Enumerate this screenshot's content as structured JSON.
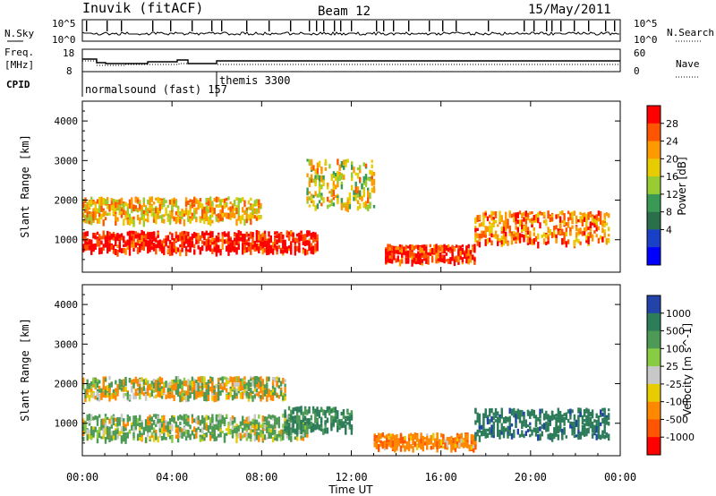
{
  "header": {
    "station": "Inuvik (fitACF)",
    "beam": "Beam 12",
    "date": "15/May/2011"
  },
  "noise_panel": {
    "left_label": "N.Sky",
    "right_label": "N.Search",
    "ticks_left": [
      "10^5",
      "10^0"
    ],
    "ticks_right": [
      "10^5",
      "10^0"
    ]
  },
  "freq_panel": {
    "left_label_1": "Freq.",
    "left_label_2": "[MHz]",
    "right_label": "Nave",
    "ticks_left": [
      "18",
      "8"
    ],
    "ticks_right": [
      "60",
      "0"
    ]
  },
  "cpid_panel": {
    "label": "CPID",
    "modes": [
      "normalsound (fast) 157",
      "themis 3300"
    ]
  },
  "chart_data": [
    {
      "type": "heatmap",
      "quantity": "Power",
      "ylabel": "Slant Range [km]",
      "xlabel": "Time UT",
      "ylim": [
        180,
        4500
      ],
      "xlim": [
        "00:00",
        "24:00"
      ],
      "colorbar_label": "Power [dB]",
      "colorbar_ticks": [
        28,
        24,
        20,
        16,
        12,
        8,
        4
      ],
      "colorbar_colors": [
        "#ff0000",
        "#ff5500",
        "#ff9900",
        "#e6cc00",
        "#99cc33",
        "#3a9a55",
        "#2a6e4a",
        "#1a40c8",
        "#0000ff"
      ],
      "features": [
        {
          "time_start": "00:00",
          "time_end": "10:30",
          "range_center": 950,
          "range_width": 500,
          "power_db": 28
        },
        {
          "time_start": "00:00",
          "time_end": "08:00",
          "range_center": 1750,
          "range_width": 600,
          "power_db": 18
        },
        {
          "time_start": "10:00",
          "time_end": "13:00",
          "range_center": 2400,
          "range_width": 1200,
          "power_db": 16
        },
        {
          "time_start": "13:30",
          "time_end": "17:30",
          "range_center": 650,
          "range_width": 400,
          "power_db": 26
        },
        {
          "time_start": "17:30",
          "time_end": "23:30",
          "range_center": 1300,
          "range_width": 800,
          "power_db": 22
        }
      ]
    },
    {
      "type": "heatmap",
      "quantity": "Velocity",
      "ylabel": "Slant Range [km]",
      "xlabel": "Time UT",
      "ylim": [
        180,
        4500
      ],
      "xlim": [
        "00:00",
        "24:00"
      ],
      "colorbar_label": "Velocity [m s^-1]",
      "colorbar_ticks": [
        1000,
        500,
        100,
        25,
        -25,
        -100,
        -500,
        -1000
      ],
      "colorbar_colors": [
        "#2244aa",
        "#2e7d5a",
        "#4c9a55",
        "#88cc44",
        "#c8c8c8",
        "#e6cc00",
        "#ff8800",
        "#ff5500",
        "#ff0000"
      ],
      "features": [
        {
          "time_start": "00:00",
          "time_end": "09:00",
          "range_center": 1900,
          "range_width": 500,
          "velocity": 0
        },
        {
          "time_start": "00:00",
          "time_end": "10:00",
          "range_center": 900,
          "range_width": 600,
          "velocity": 80
        },
        {
          "time_start": "09:00",
          "time_end": "12:00",
          "range_center": 1100,
          "range_width": 600,
          "velocity": 400
        },
        {
          "time_start": "13:00",
          "time_end": "17:30",
          "range_center": 550,
          "range_width": 350,
          "velocity": -200
        },
        {
          "time_start": "17:30",
          "time_end": "23:30",
          "range_center": 1000,
          "range_width": 700,
          "velocity": 600
        }
      ]
    }
  ],
  "time_axis": {
    "ticks": [
      "00:00",
      "04:00",
      "08:00",
      "12:00",
      "16:00",
      "20:00",
      "00:00"
    ],
    "label": "Time UT"
  },
  "range_ticks": [
    1000,
    2000,
    3000,
    4000
  ]
}
